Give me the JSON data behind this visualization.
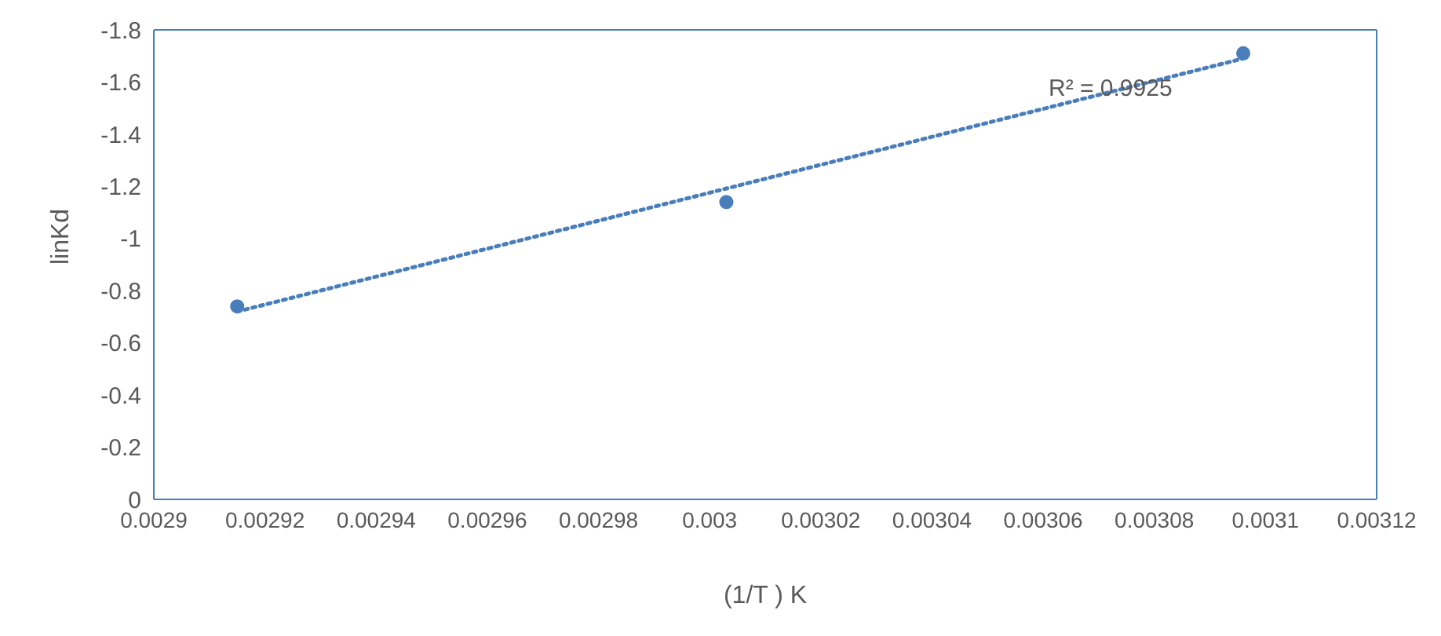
{
  "chart_data": {
    "type": "scatter",
    "xlabel": "(1/T  ) K",
    "ylabel": "linKd",
    "x": [
      0.002915,
      0.003003,
      0.003096
    ],
    "series": [
      {
        "color": "#4a7ebb",
        "values": [
          -0.74,
          -1.14,
          -1.71
        ]
      },
      {
        "type": "line",
        "color": "#4a7ebb",
        "line_style": "dotted",
        "marker": "none",
        "x": [
          0.002915,
          0.003096
        ],
        "values": [
          -0.72,
          -1.69
        ]
      }
    ],
    "marker": "circle",
    "annotations": [
      "R² = 0.9925"
    ],
    "xlim": [
      0.0029,
      0.00312
    ],
    "xticks": [
      0.0029,
      0.00292,
      0.00294,
      0.00296,
      0.00298,
      0.003,
      0.00302,
      0.00304,
      0.00306,
      0.00308,
      0.0031,
      0.00312
    ],
    "ylim": [
      0,
      -1.8
    ],
    "yticks": [
      0,
      -0.2,
      -0.4,
      -0.6,
      -0.8,
      -1,
      -1.2,
      -1.4,
      -1.6,
      -1.8
    ],
    "grid": false
  }
}
